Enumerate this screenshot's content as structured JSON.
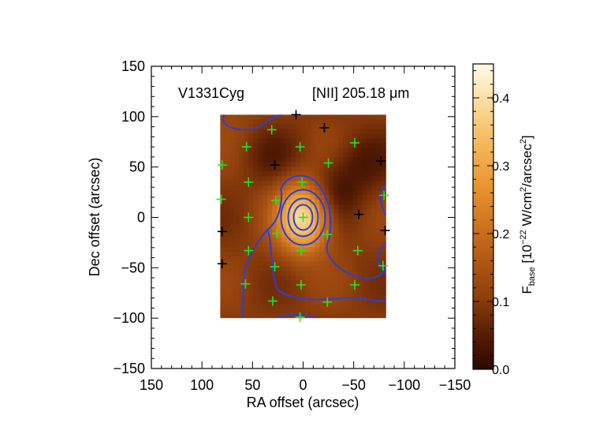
{
  "chart_data": {
    "type": "heatmap",
    "title_left": "V1331Cyg",
    "title_right": "[NII] 205.18 μm",
    "xlabel": "RA offset (arcsec)",
    "ylabel": "Dec offset (arcsec)",
    "xlim": [
      150,
      -150
    ],
    "ylim": [
      -150,
      150
    ],
    "xticks": [
      "150",
      "100",
      "50",
      "0",
      "−50",
      "−100",
      "−150"
    ],
    "yticks": [
      "150",
      "100",
      "50",
      "0",
      "−50",
      "−100",
      "−150"
    ],
    "colorbar": {
      "label_main": "F",
      "label_sub": "base",
      "label_rest_1": " [10",
      "label_exp": "−22",
      "label_rest_2": " W/cm",
      "label_sq1": "2",
      "label_rest_3": "/arcsec",
      "label_sq2": "2",
      "label_end": "]",
      "ticks": [
        "0.0",
        "0.1",
        "0.2",
        "0.3",
        "0.4"
      ],
      "range": [
        0.0,
        0.45
      ]
    },
    "map_extent": {
      "ra": [
        82,
        -82
      ],
      "dec": [
        -100,
        102
      ]
    },
    "peak": {
      "ra": 0,
      "dec": 0,
      "value": 0.4
    },
    "secondary_peak": {
      "ra": 70,
      "dec": 100,
      "value": 0.12
    },
    "background_value": 0.1,
    "dark_regions": [
      {
        "ra": -30,
        "dec": 25,
        "value": 0.03
      },
      {
        "ra": 30,
        "dec": 60,
        "value": 0.06
      },
      {
        "ra": -60,
        "dec": 55,
        "value": 0.05
      }
    ],
    "contour_color": "#2b3fd4",
    "green_markers": [
      {
        "ra": 0,
        "dec": 0
      },
      {
        "ra": 80,
        "dec": 52
      },
      {
        "ra": 56,
        "dec": 70
      },
      {
        "ra": 31,
        "dec": 87
      },
      {
        "ra": 81,
        "dec": 18
      },
      {
        "ra": 54,
        "dec": 35
      },
      {
        "ra": 27,
        "dec": 17
      },
      {
        "ra": 3,
        "dec": 70
      },
      {
        "ra": -25,
        "dec": 54
      },
      {
        "ra": -51,
        "dec": 74
      },
      {
        "ra": 1,
        "dec": 35
      },
      {
        "ra": -80,
        "dec": 22
      },
      {
        "ra": 54,
        "dec": 0
      },
      {
        "ra": 26,
        "dec": -16
      },
      {
        "ra": 2,
        "dec": -33
      },
      {
        "ra": -24,
        "dec": -17
      },
      {
        "ra": -54,
        "dec": -33
      },
      {
        "ra": -79,
        "dec": -48
      },
      {
        "ra": 54,
        "dec": -33
      },
      {
        "ra": 28,
        "dec": -49
      },
      {
        "ra": 57,
        "dec": -66
      },
      {
        "ra": 2,
        "dec": -67
      },
      {
        "ra": -51,
        "dec": -67
      },
      {
        "ra": 30,
        "dec": -83
      },
      {
        "ra": -24,
        "dec": -84
      },
      {
        "ra": 3,
        "dec": -99
      }
    ],
    "black_markers": [
      {
        "ra": 7,
        "dec": 102
      },
      {
        "ra": -21,
        "dec": 89
      },
      {
        "ra": 28,
        "dec": 52
      },
      {
        "ra": -77,
        "dec": 56
      },
      {
        "ra": -55,
        "dec": 3
      },
      {
        "ra": -81,
        "dec": -13
      },
      {
        "ra": 80,
        "dec": -14
      },
      {
        "ra": 80,
        "dec": -46
      }
    ],
    "marker_colors": {
      "green": "#22e622",
      "black": "#000000"
    }
  }
}
